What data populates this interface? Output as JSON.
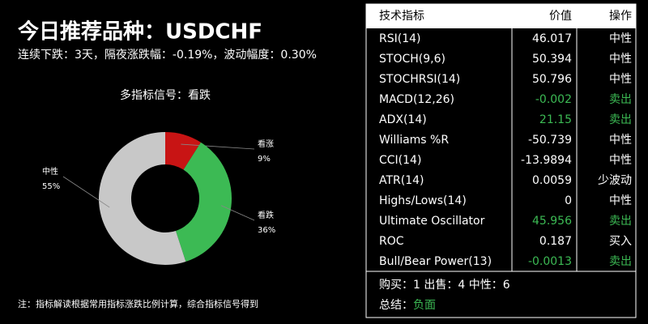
{
  "header": {
    "title": "今日推荐品种：USDCHF",
    "subtitle": "连续下跌：3天，隔夜涨跌幅：-0.19%，波动幅度：0.30%"
  },
  "chart_data": {
    "type": "pie",
    "title": "多指标信号：看跌",
    "categories": [
      "看涨",
      "看跌",
      "中性"
    ],
    "values": [
      9,
      36,
      55
    ],
    "value_labels": [
      "9%",
      "36%",
      "55%"
    ],
    "colors": [
      "#c81414",
      "#3cba54",
      "#c8c8c8"
    ],
    "donut": true
  },
  "note": "注：指标解读根据常用指标涨跌比例计算，综合指标信号得到",
  "table": {
    "columns": [
      "技术指标",
      "价值",
      "操作"
    ],
    "rows": [
      {
        "name": "RSI(14)",
        "value": "46.017",
        "action": "中性",
        "color": "#ffffff"
      },
      {
        "name": "STOCH(9,6)",
        "value": "50.394",
        "action": "中性",
        "color": "#ffffff"
      },
      {
        "name": "STOCHRSI(14)",
        "value": "50.796",
        "action": "中性",
        "color": "#ffffff"
      },
      {
        "name": "MACD(12,26)",
        "value": "-0.002",
        "action": "卖出",
        "color": "#3cba54"
      },
      {
        "name": "ADX(14)",
        "value": "21.15",
        "action": "卖出",
        "color": "#3cba54"
      },
      {
        "name": "Williams %R",
        "value": "-50.739",
        "action": "中性",
        "color": "#ffffff"
      },
      {
        "name": "CCI(14)",
        "value": "-13.9894",
        "action": "中性",
        "color": "#ffffff"
      },
      {
        "name": "ATR(14)",
        "value": "0.0059",
        "action": "少波动",
        "color": "#ffffff"
      },
      {
        "name": "Highs/Lows(14)",
        "value": "0",
        "action": "中性",
        "color": "#ffffff"
      },
      {
        "name": "Ultimate Oscillator",
        "value": "45.956",
        "action": "卖出",
        "color": "#3cba54"
      },
      {
        "name": "ROC",
        "value": "0.187",
        "action": "买入",
        "color": "#ffffff"
      },
      {
        "name": "Bull/Bear Power(13)",
        "value": "-0.0013",
        "action": "卖出",
        "color": "#3cba54"
      }
    ],
    "summary": "购买：1 出售：4 中性：6",
    "conclusion_label": "总结：",
    "conclusion": "负面",
    "conclusion_color": "#3cba54"
  }
}
